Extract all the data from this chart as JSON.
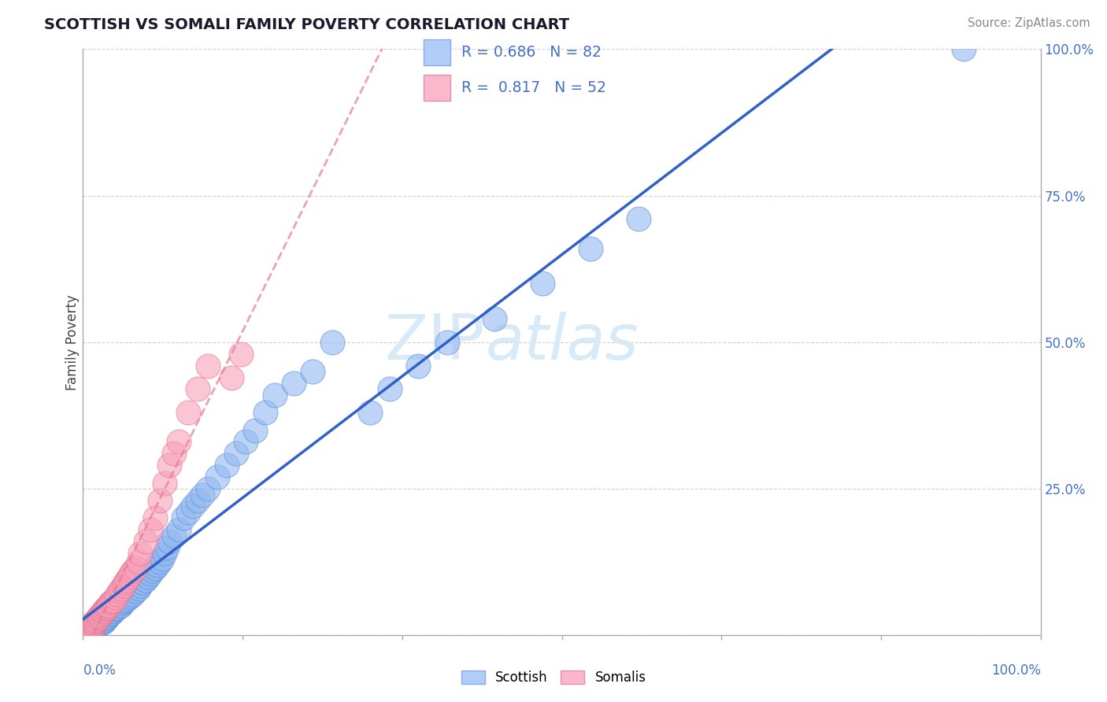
{
  "title": "SCOTTISH VS SOMALI FAMILY POVERTY CORRELATION CHART",
  "source": "Source: ZipAtlas.com",
  "ylabel": "Family Poverty",
  "scottish_R": 0.686,
  "scottish_N": 82,
  "somali_R": 0.817,
  "somali_N": 52,
  "scottish_dot_color": "#92b8f0",
  "scottish_dot_edge": "#6090d8",
  "somali_dot_color": "#f8a0b8",
  "somali_dot_edge": "#e07898",
  "scottish_line_color": "#3060c8",
  "somali_line_color": "#e87898",
  "legend_scottish_face": "#b0ccf8",
  "legend_scottish_edge": "#8aaae8",
  "legend_somali_face": "#fbb8cc",
  "legend_somali_edge": "#e090a8",
  "watermark_color": "#d8eaf8",
  "tick_color": "#4472c4",
  "axis_label_color": "#4472c4",
  "grid_color": "#cccccc",
  "scottish_points_x": [
    0.005,
    0.008,
    0.01,
    0.01,
    0.01,
    0.011,
    0.012,
    0.013,
    0.014,
    0.015,
    0.015,
    0.016,
    0.017,
    0.018,
    0.019,
    0.02,
    0.02,
    0.021,
    0.022,
    0.023,
    0.024,
    0.025,
    0.026,
    0.027,
    0.028,
    0.03,
    0.031,
    0.032,
    0.033,
    0.035,
    0.036,
    0.038,
    0.04,
    0.041,
    0.042,
    0.044,
    0.046,
    0.048,
    0.05,
    0.052,
    0.055,
    0.058,
    0.06,
    0.062,
    0.065,
    0.068,
    0.07,
    0.072,
    0.075,
    0.078,
    0.08,
    0.083,
    0.085,
    0.088,
    0.09,
    0.095,
    0.1,
    0.105,
    0.11,
    0.115,
    0.12,
    0.125,
    0.13,
    0.14,
    0.15,
    0.16,
    0.17,
    0.18,
    0.19,
    0.2,
    0.22,
    0.24,
    0.26,
    0.3,
    0.32,
    0.35,
    0.38,
    0.43,
    0.48,
    0.53,
    0.58,
    0.92
  ],
  "scottish_points_y": [
    0.005,
    0.008,
    0.01,
    0.015,
    0.02,
    0.012,
    0.014,
    0.016,
    0.018,
    0.02,
    0.025,
    0.018,
    0.02,
    0.022,
    0.024,
    0.025,
    0.03,
    0.022,
    0.024,
    0.026,
    0.028,
    0.03,
    0.032,
    0.034,
    0.036,
    0.038,
    0.04,
    0.042,
    0.044,
    0.046,
    0.048,
    0.05,
    0.052,
    0.055,
    0.058,
    0.06,
    0.062,
    0.065,
    0.068,
    0.07,
    0.075,
    0.08,
    0.085,
    0.09,
    0.095,
    0.1,
    0.105,
    0.11,
    0.115,
    0.12,
    0.125,
    0.13,
    0.14,
    0.15,
    0.16,
    0.17,
    0.18,
    0.2,
    0.21,
    0.22,
    0.23,
    0.24,
    0.25,
    0.27,
    0.29,
    0.31,
    0.33,
    0.35,
    0.38,
    0.41,
    0.43,
    0.45,
    0.5,
    0.38,
    0.42,
    0.46,
    0.5,
    0.54,
    0.6,
    0.66,
    0.71,
    1.0
  ],
  "somali_points_x": [
    0.005,
    0.007,
    0.008,
    0.009,
    0.01,
    0.01,
    0.011,
    0.012,
    0.013,
    0.014,
    0.015,
    0.016,
    0.017,
    0.018,
    0.019,
    0.02,
    0.021,
    0.022,
    0.023,
    0.024,
    0.025,
    0.026,
    0.027,
    0.028,
    0.03,
    0.032,
    0.034,
    0.036,
    0.038,
    0.04,
    0.042,
    0.044,
    0.046,
    0.048,
    0.05,
    0.052,
    0.055,
    0.058,
    0.06,
    0.065,
    0.07,
    0.075,
    0.08,
    0.085,
    0.09,
    0.095,
    0.1,
    0.11,
    0.12,
    0.13,
    0.155,
    0.165
  ],
  "somali_points_y": [
    0.005,
    0.008,
    0.01,
    0.012,
    0.014,
    0.018,
    0.02,
    0.022,
    0.024,
    0.026,
    0.028,
    0.03,
    0.032,
    0.034,
    0.036,
    0.038,
    0.04,
    0.042,
    0.044,
    0.046,
    0.048,
    0.05,
    0.052,
    0.055,
    0.058,
    0.06,
    0.065,
    0.07,
    0.075,
    0.08,
    0.085,
    0.09,
    0.095,
    0.1,
    0.105,
    0.11,
    0.115,
    0.125,
    0.14,
    0.16,
    0.18,
    0.2,
    0.23,
    0.26,
    0.29,
    0.31,
    0.33,
    0.38,
    0.42,
    0.46,
    0.44,
    0.48
  ]
}
